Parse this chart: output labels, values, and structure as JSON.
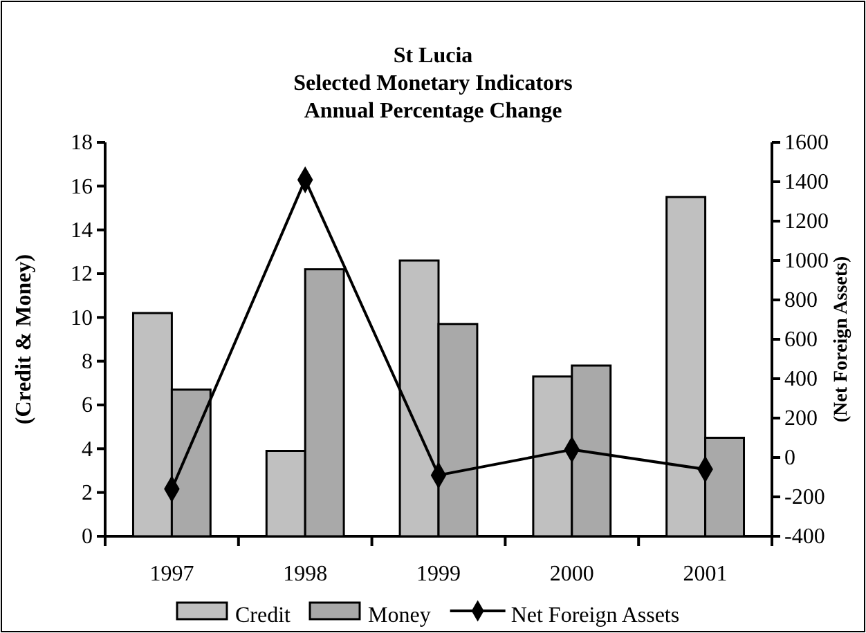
{
  "chart_data": {
    "type": "bar",
    "title": "St Lucia\nSelected Monetary Indicators\nAnnual Percentage Change",
    "ylabel": "(Credit & Money)",
    "y2label": "(Net Foreign Assets)",
    "categories": [
      "1997",
      "1998",
      "1999",
      "2000",
      "2001"
    ],
    "series": [
      {
        "name": "Credit",
        "color": "#c0c0c0",
        "values": [
          10.2,
          3.9,
          12.6,
          7.3,
          15.5
        ]
      },
      {
        "name": "Money",
        "color": "#a9a9a9",
        "values": [
          6.7,
          12.2,
          9.7,
          7.8,
          4.5
        ]
      },
      {
        "name": "Net Foreign Assets",
        "type": "line",
        "axis": "y2",
        "color": "#000000",
        "marker": "diamond",
        "values": [
          -160,
          1410,
          -90,
          40,
          -60
        ]
      }
    ],
    "ylim": [
      0,
      18
    ],
    "yticks": [
      0,
      2,
      4,
      6,
      8,
      10,
      12,
      14,
      16,
      18
    ],
    "y2lim": [
      -400,
      1600
    ],
    "y2ticks": [
      -400,
      -200,
      0,
      200,
      400,
      600,
      800,
      1000,
      1200,
      1400,
      1600
    ],
    "legend": "bottom",
    "grid": false
  }
}
